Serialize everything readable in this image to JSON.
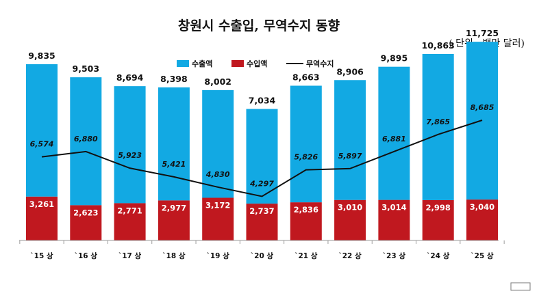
{
  "chart_data": {
    "type": "bar",
    "title": "창원시 수출입, 무역수지 동향",
    "unit": "( 단위 : 백만 달러)",
    "categories": [
      "`15 상",
      "`16 상",
      "`17 상",
      "`18 상",
      "`19 상",
      "`20 상",
      "`21 상",
      "`22 상",
      "`23 상",
      "`24 상",
      "`25 상"
    ],
    "series": [
      {
        "name": "수출액",
        "kind": "bar",
        "color": "#12a9e3",
        "values": [
          9835,
          9503,
          8694,
          8398,
          8002,
          7034,
          8663,
          8906,
          9895,
          10863,
          11725
        ],
        "labels": [
          "9,835",
          "9,503",
          "8,694",
          "8,398",
          "8,002",
          "7,034",
          "8,663",
          "8,906",
          "9,895",
          "10,863",
          "11,725"
        ]
      },
      {
        "name": "수입액",
        "kind": "bar",
        "color": "#c0181f",
        "values": [
          3261,
          2623,
          2771,
          2977,
          3172,
          2737,
          2836,
          3010,
          3014,
          2998,
          3040
        ],
        "labels": [
          "3,261",
          "2,623",
          "2,771",
          "2,977",
          "3,172",
          "2,737",
          "2,836",
          "3,010",
          "3,014",
          "2,998",
          "3,040"
        ]
      },
      {
        "name": "무역수지",
        "kind": "line",
        "color": "#111111",
        "values": [
          6574,
          6880,
          5923,
          5421,
          4830,
          4297,
          5826,
          5897,
          6881,
          7865,
          8685
        ],
        "labels": [
          "6,574",
          "6,880",
          "5,923",
          "5,421",
          "4,830",
          "4,297",
          "5,826",
          "5,897",
          "6,881",
          "7,865",
          "8,685"
        ]
      }
    ],
    "legend_position": "top-left",
    "grid": false
  }
}
